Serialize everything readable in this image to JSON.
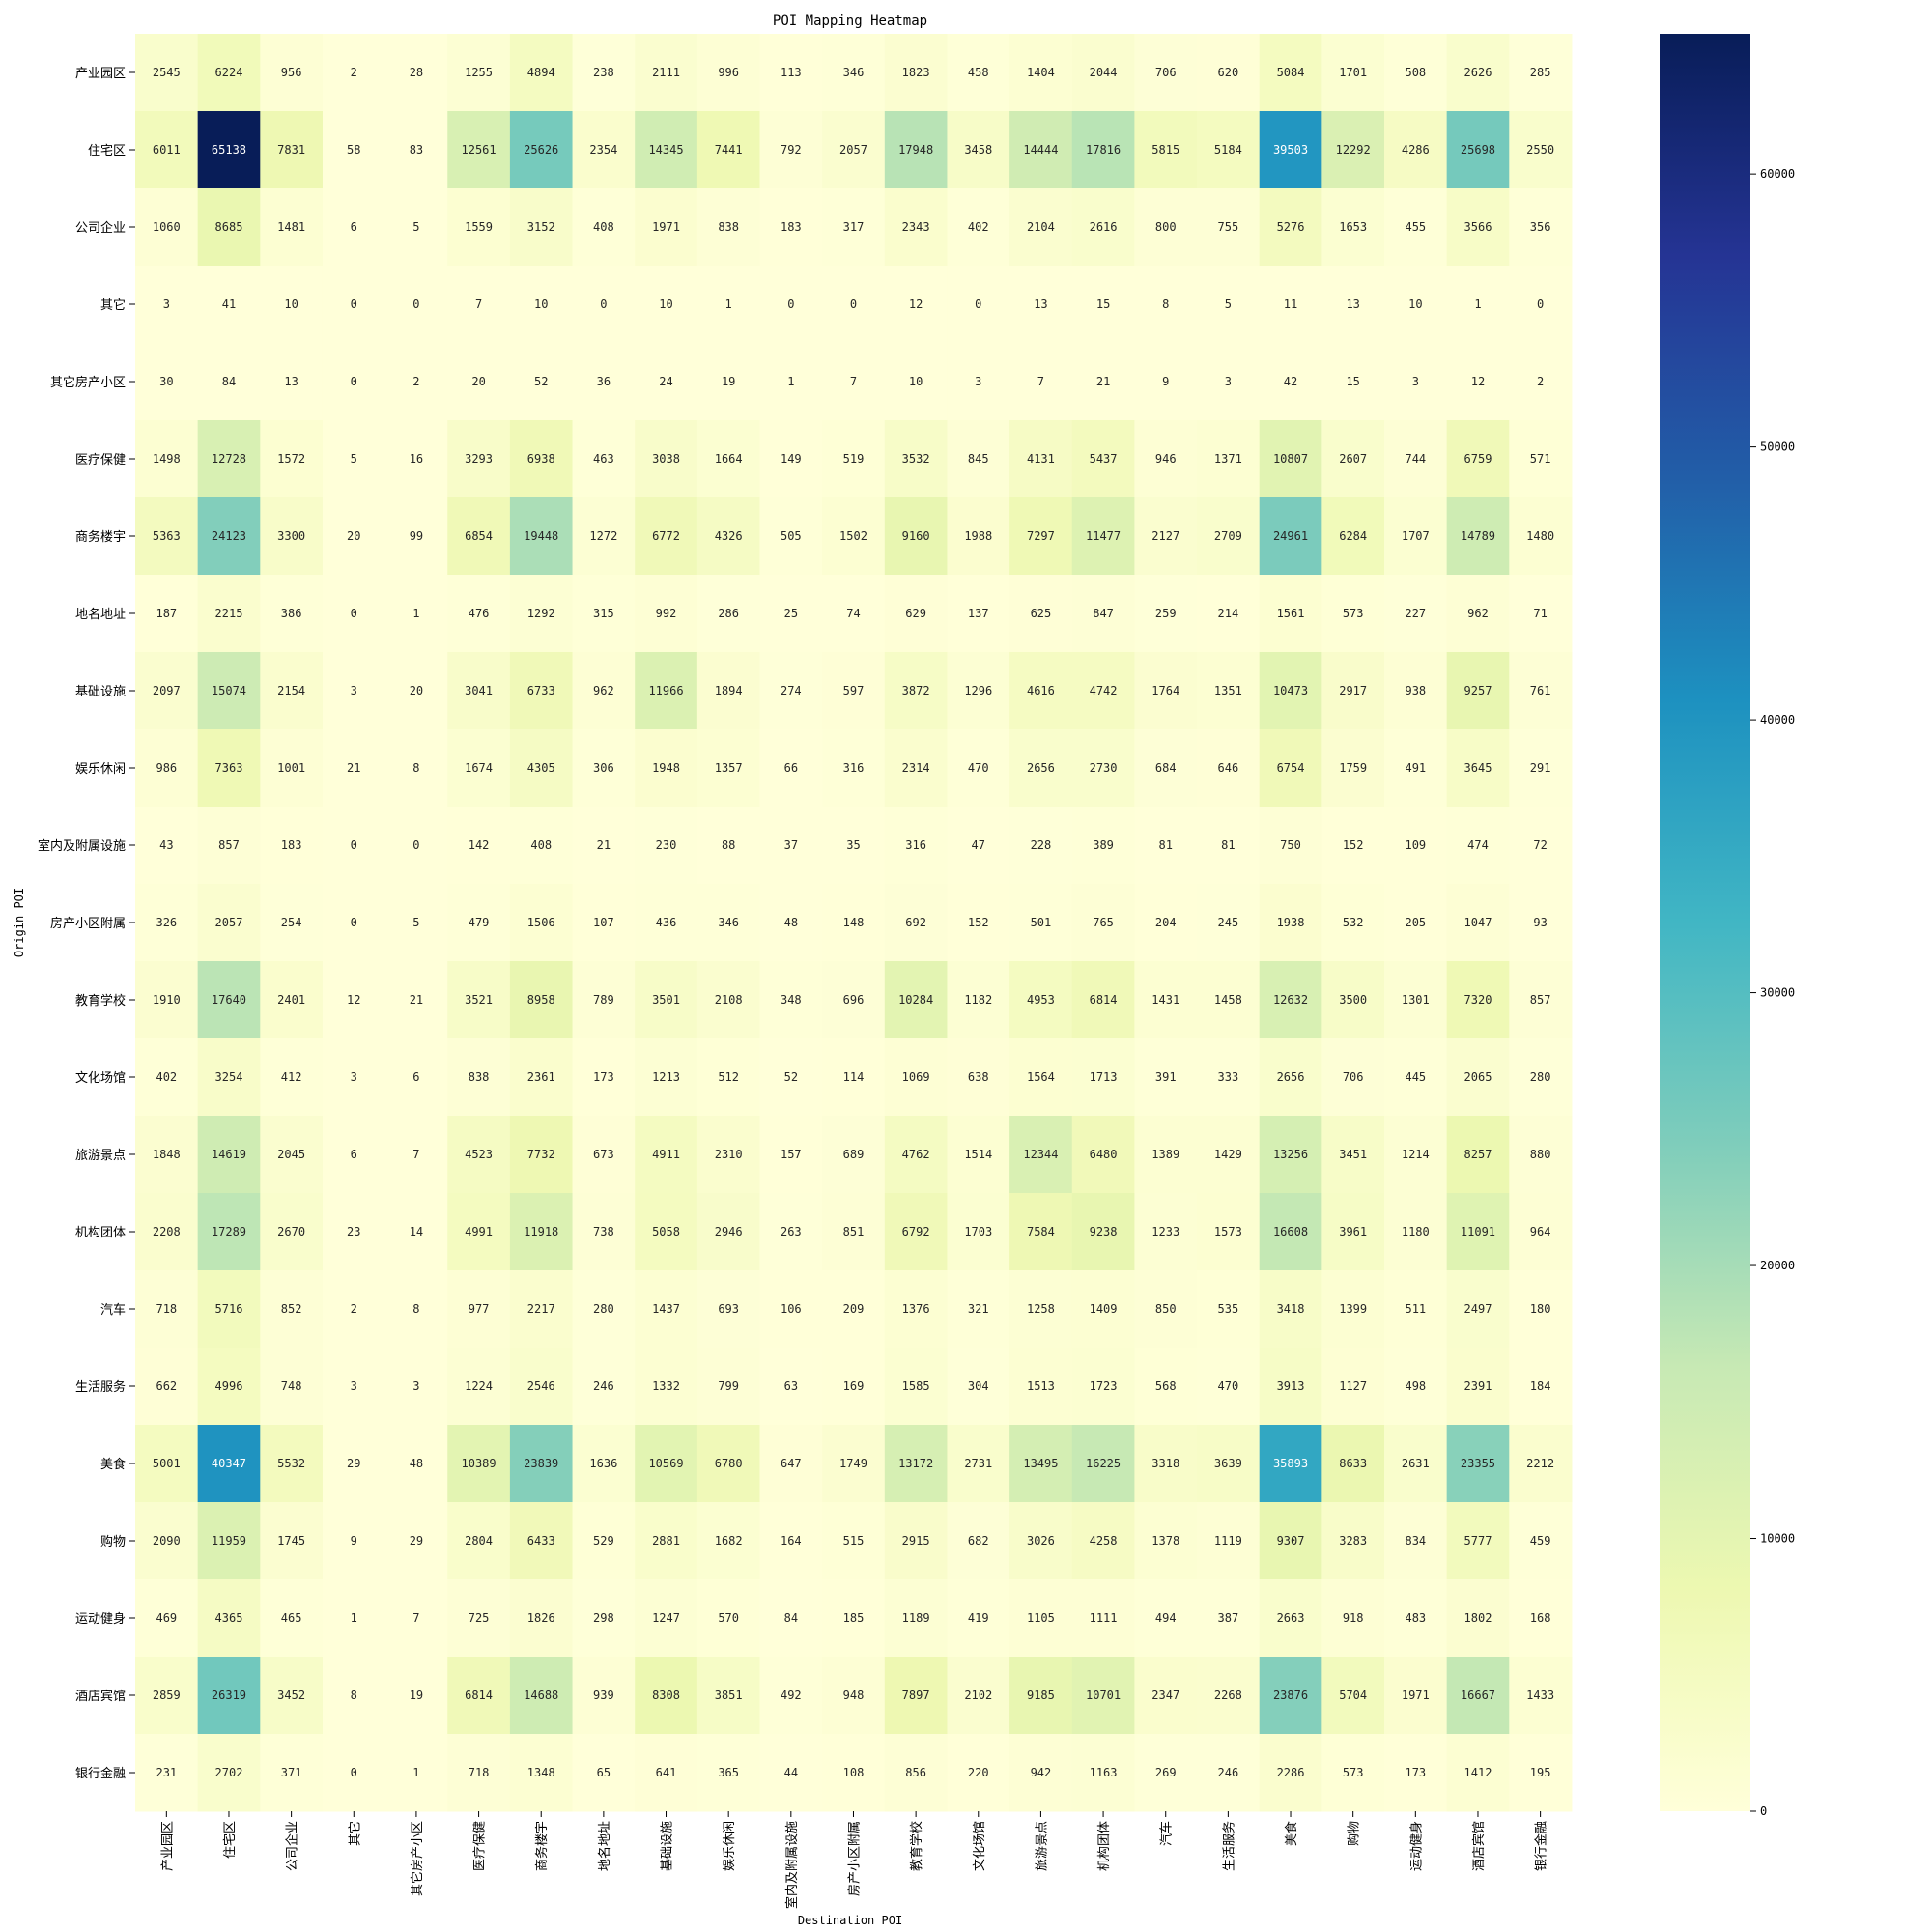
{
  "chart_data": {
    "type": "heatmap",
    "title": "POI Mapping Heatmap",
    "xlabel": "Destination POI",
    "ylabel": "Origin POI",
    "colormap": "YlGnBu",
    "colorbar": {
      "min": 0,
      "max": 65138,
      "ticks": [
        0,
        10000,
        20000,
        30000,
        40000,
        50000,
        60000
      ]
    },
    "x_categories": [
      "产业园区",
      "住宅区",
      "公司企业",
      "其它",
      "其它房产小区",
      "医疗保健",
      "商务楼宇",
      "地名地址",
      "基础设施",
      "娱乐休闲",
      "室内及附属设施",
      "房产小区附属",
      "教育学校",
      "文化场馆",
      "旅游景点",
      "机构团体",
      "汽车",
      "生活服务",
      "美食",
      "购物",
      "运动健身",
      "酒店宾馆",
      "银行金融"
    ],
    "y_categories": [
      "产业园区",
      "住宅区",
      "公司企业",
      "其它",
      "其它房产小区",
      "医疗保健",
      "商务楼宇",
      "地名地址",
      "基础设施",
      "娱乐休闲",
      "室内及附属设施",
      "房产小区附属",
      "教育学校",
      "文化场馆",
      "旅游景点",
      "机构团体",
      "汽车",
      "生活服务",
      "美食",
      "购物",
      "运动健身",
      "酒店宾馆",
      "银行金融"
    ],
    "values": [
      [
        2545,
        6224,
        956,
        2,
        28,
        1255,
        4894,
        238,
        2111,
        996,
        113,
        346,
        1823,
        458,
        1404,
        2044,
        706,
        620,
        5084,
        1701,
        508,
        2626,
        285
      ],
      [
        6011,
        65138,
        7831,
        58,
        83,
        12561,
        25626,
        2354,
        14345,
        7441,
        792,
        2057,
        17948,
        3458,
        14444,
        17816,
        5815,
        5184,
        39503,
        12292,
        4286,
        25698,
        2550
      ],
      [
        1060,
        8685,
        1481,
        6,
        5,
        1559,
        3152,
        408,
        1971,
        838,
        183,
        317,
        2343,
        402,
        2104,
        2616,
        800,
        755,
        5276,
        1653,
        455,
        3566,
        356
      ],
      [
        3,
        41,
        10,
        0,
        0,
        7,
        10,
        0,
        10,
        1,
        0,
        0,
        12,
        0,
        13,
        15,
        8,
        5,
        11,
        13,
        10,
        1,
        0
      ],
      [
        30,
        84,
        13,
        0,
        2,
        20,
        52,
        36,
        24,
        19,
        1,
        7,
        10,
        3,
        7,
        21,
        9,
        3,
        42,
        15,
        3,
        12,
        2
      ],
      [
        1498,
        12728,
        1572,
        5,
        16,
        3293,
        6938,
        463,
        3038,
        1664,
        149,
        519,
        3532,
        845,
        4131,
        5437,
        946,
        1371,
        10807,
        2607,
        744,
        6759,
        571
      ],
      [
        5363,
        24123,
        3300,
        20,
        99,
        6854,
        19448,
        1272,
        6772,
        4326,
        505,
        1502,
        9160,
        1988,
        7297,
        11477,
        2127,
        2709,
        24961,
        6284,
        1707,
        14789,
        1480
      ],
      [
        187,
        2215,
        386,
        0,
        1,
        476,
        1292,
        315,
        992,
        286,
        25,
        74,
        629,
        137,
        625,
        847,
        259,
        214,
        1561,
        573,
        227,
        962,
        71
      ],
      [
        2097,
        15074,
        2154,
        3,
        20,
        3041,
        6733,
        962,
        11966,
        1894,
        274,
        597,
        3872,
        1296,
        4616,
        4742,
        1764,
        1351,
        10473,
        2917,
        938,
        9257,
        761
      ],
      [
        986,
        7363,
        1001,
        21,
        8,
        1674,
        4305,
        306,
        1948,
        1357,
        66,
        316,
        2314,
        470,
        2656,
        2730,
        684,
        646,
        6754,
        1759,
        491,
        3645,
        291
      ],
      [
        43,
        857,
        183,
        0,
        0,
        142,
        408,
        21,
        230,
        88,
        37,
        35,
        316,
        47,
        228,
        389,
        81,
        81,
        750,
        152,
        109,
        474,
        72
      ],
      [
        326,
        2057,
        254,
        0,
        5,
        479,
        1506,
        107,
        436,
        346,
        48,
        148,
        692,
        152,
        501,
        765,
        204,
        245,
        1938,
        532,
        205,
        1047,
        93
      ],
      [
        1910,
        17640,
        2401,
        12,
        21,
        3521,
        8958,
        789,
        3501,
        2108,
        348,
        696,
        10284,
        1182,
        4953,
        6814,
        1431,
        1458,
        12632,
        3500,
        1301,
        7320,
        857
      ],
      [
        402,
        3254,
        412,
        3,
        6,
        838,
        2361,
        173,
        1213,
        512,
        52,
        114,
        1069,
        638,
        1564,
        1713,
        391,
        333,
        2656,
        706,
        445,
        2065,
        280
      ],
      [
        1848,
        14619,
        2045,
        6,
        7,
        4523,
        7732,
        673,
        4911,
        2310,
        157,
        689,
        4762,
        1514,
        12344,
        6480,
        1389,
        1429,
        13256,
        3451,
        1214,
        8257,
        880
      ],
      [
        2208,
        17289,
        2670,
        23,
        14,
        4991,
        11918,
        738,
        5058,
        2946,
        263,
        851,
        6792,
        1703,
        7584,
        9238,
        1233,
        1573,
        16608,
        3961,
        1180,
        11091,
        964
      ],
      [
        718,
        5716,
        852,
        2,
        8,
        977,
        2217,
        280,
        1437,
        693,
        106,
        209,
        1376,
        321,
        1258,
        1409,
        850,
        535,
        3418,
        1399,
        511,
        2497,
        180
      ],
      [
        662,
        4996,
        748,
        3,
        3,
        1224,
        2546,
        246,
        1332,
        799,
        63,
        169,
        1585,
        304,
        1513,
        1723,
        568,
        470,
        3913,
        1127,
        498,
        2391,
        184
      ],
      [
        5001,
        40347,
        5532,
        29,
        48,
        10389,
        23839,
        1636,
        10569,
        6780,
        647,
        1749,
        13172,
        2731,
        13495,
        16225,
        3318,
        3639,
        35893,
        8633,
        2631,
        23355,
        2212
      ],
      [
        2090,
        11959,
        1745,
        9,
        29,
        2804,
        6433,
        529,
        2881,
        1682,
        164,
        515,
        2915,
        682,
        3026,
        4258,
        1378,
        1119,
        9307,
        3283,
        834,
        5777,
        459
      ],
      [
        469,
        4365,
        465,
        1,
        7,
        725,
        1826,
        298,
        1247,
        570,
        84,
        185,
        1189,
        419,
        1105,
        1111,
        494,
        387,
        2663,
        918,
        483,
        1802,
        168
      ],
      [
        2859,
        26319,
        3452,
        8,
        19,
        6814,
        14688,
        939,
        8308,
        3851,
        492,
        948,
        7897,
        2102,
        9185,
        10701,
        2347,
        2268,
        23876,
        5704,
        1971,
        16667,
        1433
      ],
      [
        231,
        2702,
        371,
        0,
        1,
        718,
        1348,
        65,
        641,
        365,
        44,
        108,
        856,
        220,
        942,
        1163,
        269,
        246,
        2286,
        573,
        173,
        1412,
        195
      ]
    ]
  }
}
